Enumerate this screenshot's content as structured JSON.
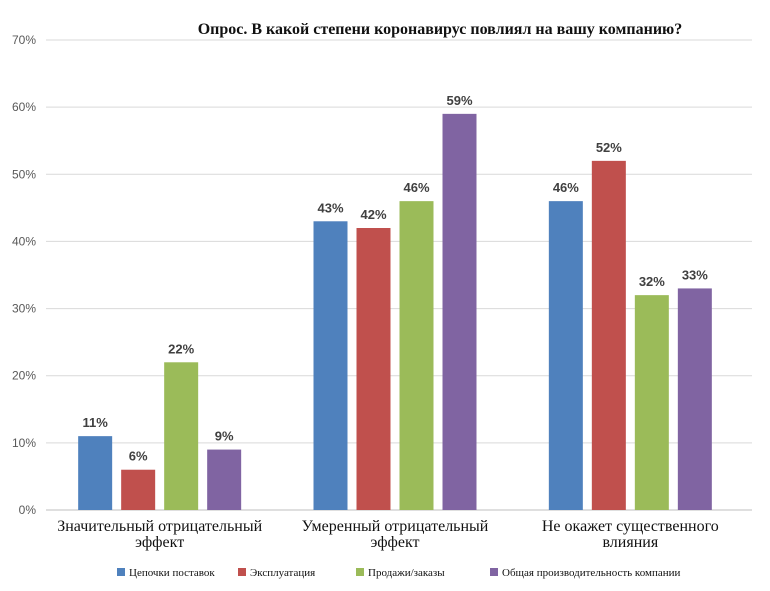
{
  "chart_data": {
    "type": "bar",
    "title": "Опрос. В какой степени коронавирус повлиял на вашу компанию?",
    "categories": [
      [
        "Значительный отрицательный",
        "эффект"
      ],
      [
        "Умеренный отрицательный",
        "эффект"
      ],
      [
        "Не окажет существенного",
        "влияния"
      ]
    ],
    "series": [
      {
        "name": "Цепочки поставок",
        "color": "#4f81bd",
        "values": [
          11,
          43,
          46
        ],
        "labels": [
          "11%",
          "43%",
          "46%"
        ]
      },
      {
        "name": "Эксплуатация",
        "color": "#c0504d",
        "values": [
          6,
          42,
          52
        ],
        "labels": [
          "6%",
          "42%",
          "52%"
        ]
      },
      {
        "name": "Продажи/заказы",
        "color": "#9bbb59",
        "values": [
          22,
          46,
          32
        ],
        "labels": [
          "22%",
          "46%",
          "32%"
        ]
      },
      {
        "name": "Общая производительность компании",
        "color": "#8064a2",
        "values": [
          9,
          59,
          33
        ],
        "labels": [
          "9%",
          "59%",
          "33%"
        ]
      }
    ],
    "ylim": [
      0,
      70
    ],
    "yticks": [
      "0%",
      "10%",
      "20%",
      "30%",
      "40%",
      "50%",
      "60%",
      "70%"
    ],
    "grid": true,
    "legend": "bottom"
  }
}
